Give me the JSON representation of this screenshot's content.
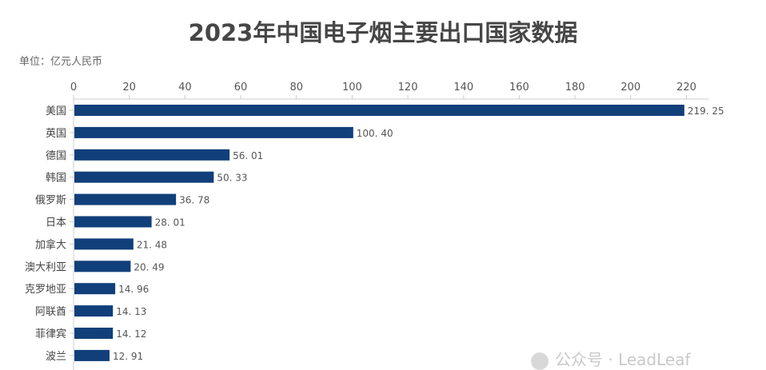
{
  "chart_data": {
    "type": "bar",
    "orientation": "horizontal",
    "title": "2023年中国电子烟主要出口国家数据",
    "unit_label": "单位：亿元人民币",
    "categories": [
      "美国",
      "英国",
      "德国",
      "韩国",
      "俄罗斯",
      "日本",
      "加拿大",
      "澳大利亚",
      "克罗地亚",
      "阿联酋",
      "菲律宾",
      "波兰"
    ],
    "values": [
      219.25,
      100.4,
      56.01,
      50.33,
      36.78,
      28.01,
      21.48,
      20.49,
      14.96,
      14.13,
      14.12,
      12.91
    ],
    "value_labels": [
      "219. 25",
      "100. 40",
      "56. 01",
      "50. 33",
      "36. 78",
      "28. 01",
      "21. 48",
      "20. 49",
      "14. 96",
      "14. 13",
      "14. 12",
      "12. 91"
    ],
    "x_ticks": [
      0,
      20,
      40,
      60,
      80,
      100,
      120,
      140,
      160,
      180,
      200,
      220
    ],
    "xlim": [
      0,
      228
    ],
    "axis_position": "top",
    "grid": false,
    "bar_color": "#113f7a"
  },
  "watermark": {
    "text": "公众号 · LeadLeaf"
  }
}
